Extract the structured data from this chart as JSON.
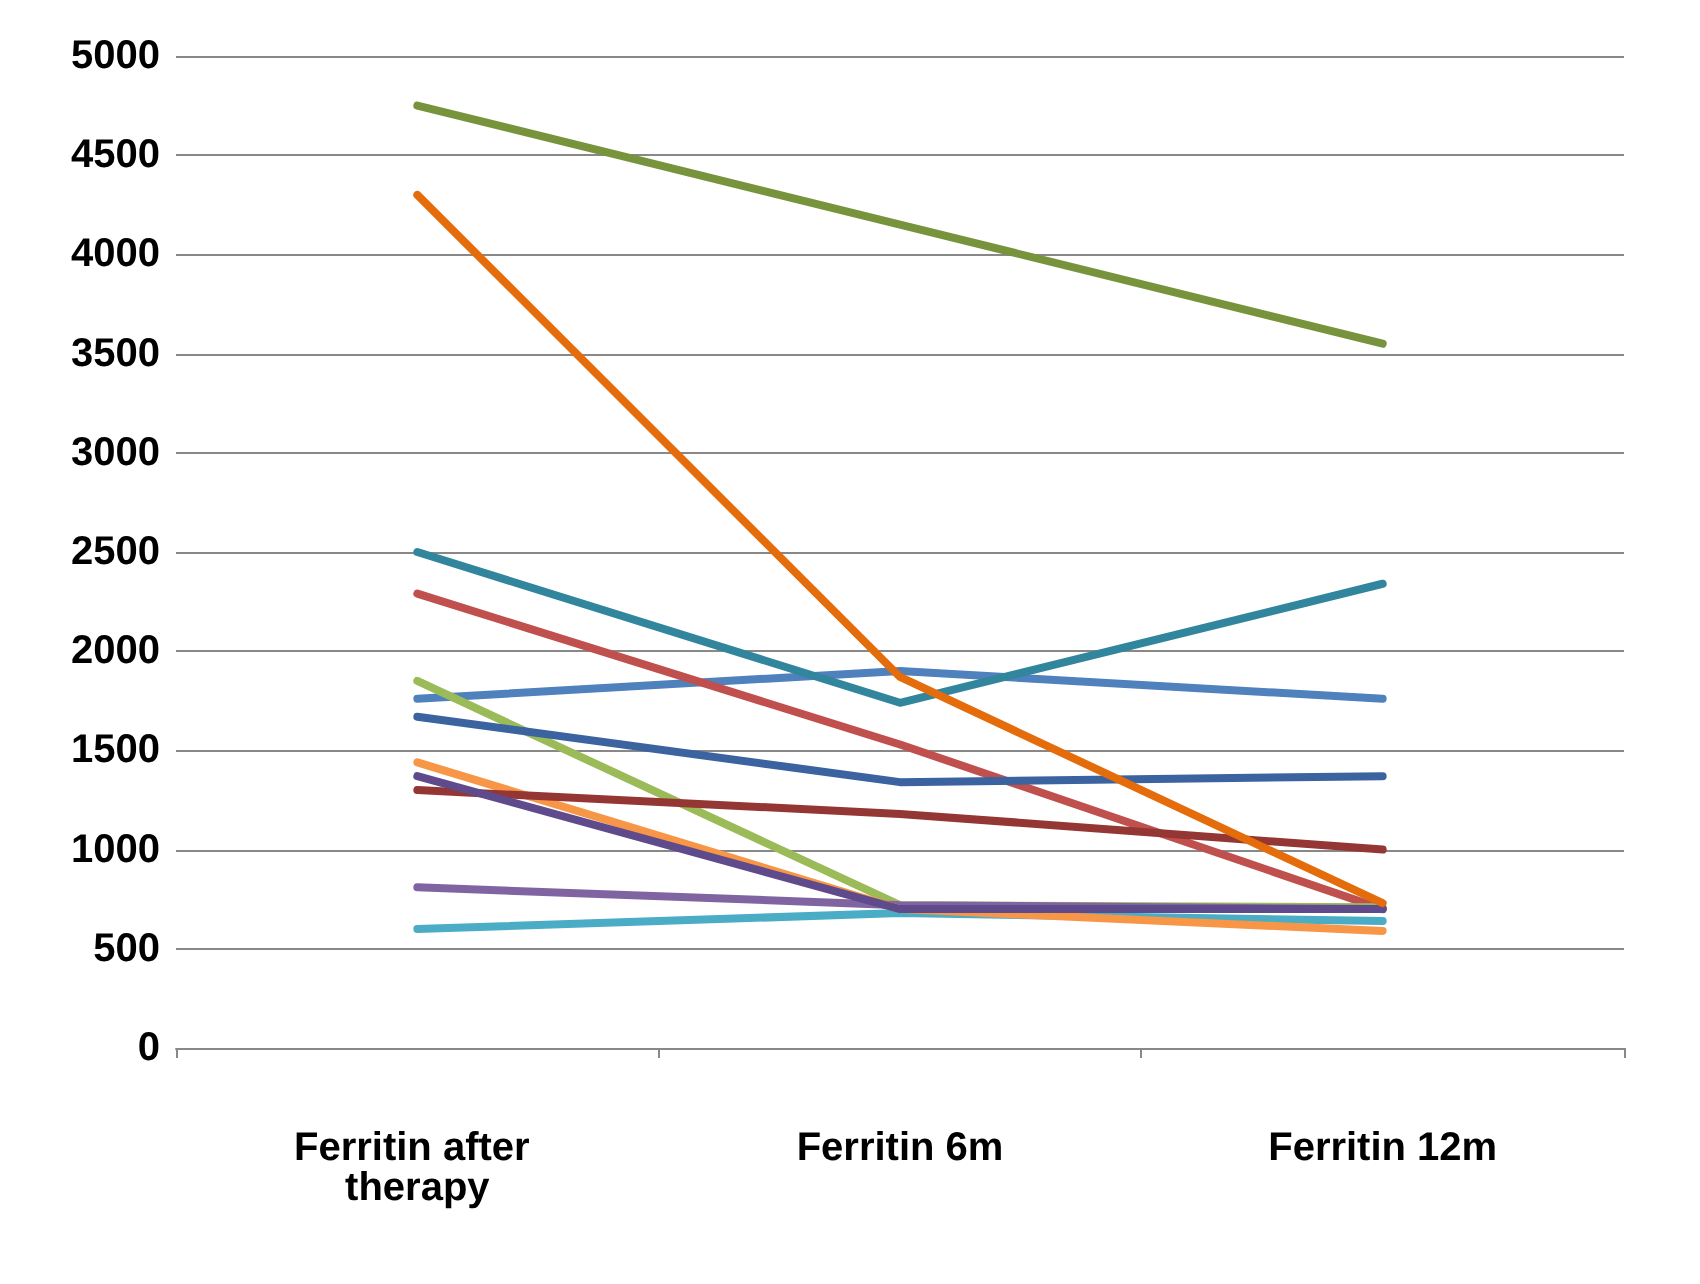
{
  "chart_data": {
    "type": "line",
    "categories": [
      "Ferritin after therapy",
      "Ferritin 6m",
      "Ferritin 12m"
    ],
    "series": [
      {
        "color": "#4f81bd",
        "values": [
          1760,
          1900,
          1760
        ]
      },
      {
        "color": "#c0504d",
        "values": [
          2290,
          1530,
          700
        ]
      },
      {
        "color": "#9bbb59",
        "values": [
          1850,
          720,
          710
        ]
      },
      {
        "color": "#8064a2",
        "values": [
          810,
          720,
          700
        ]
      },
      {
        "color": "#4bacc6",
        "values": [
          600,
          680,
          640
        ]
      },
      {
        "color": "#f79646",
        "values": [
          1440,
          700,
          590
        ]
      },
      {
        "color": "#3a63a0",
        "values": [
          1670,
          1340,
          1370
        ]
      },
      {
        "color": "#943634",
        "values": [
          1300,
          1180,
          1000
        ]
      },
      {
        "color": "#77933c",
        "values": [
          4750,
          4150,
          3550
        ]
      },
      {
        "color": "#5f4a8b",
        "values": [
          1370,
          700,
          700
        ]
      },
      {
        "color": "#31859c",
        "values": [
          2500,
          1740,
          2340
        ]
      },
      {
        "color": "#e46c0a",
        "values": [
          4300,
          1870,
          730
        ]
      }
    ],
    "ylim": [
      0,
      5000
    ],
    "yticks": [
      0,
      500,
      1000,
      1500,
      2000,
      2500,
      3000,
      3500,
      4000,
      4500,
      5000
    ],
    "grid": "y",
    "marker": "none",
    "line_style": "solid"
  }
}
